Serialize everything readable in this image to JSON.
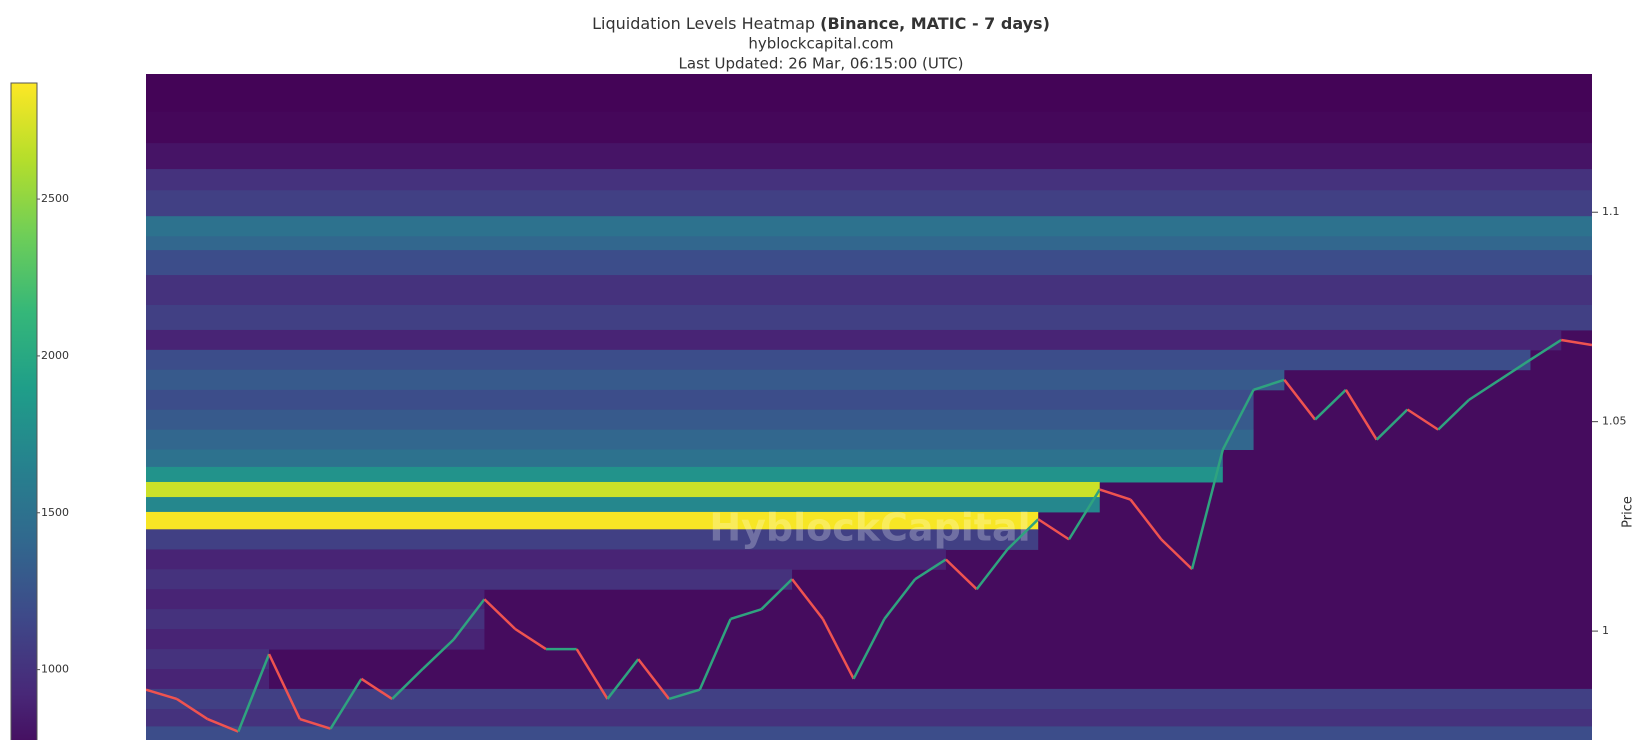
{
  "chart_data": {
    "type": "heatmap",
    "title": "Liquidation Levels Heatmap",
    "title_bold": "(Binance, MATIC - 7 days)",
    "subtitle": "hyblockcapital.com",
    "updated": "Last Updated: 26 Mar, 06:15:00 (UTC)",
    "watermark": "HyblockCapital",
    "y_label": "Price",
    "ylim": [
      0.974,
      1.133
    ],
    "yticks": [
      1,
      1.05,
      1.1
    ],
    "zlim": [
      680,
      2870
    ],
    "zticks": [
      1000,
      1500,
      2000,
      2500
    ],
    "colorscale": [
      "#440154",
      "#482878",
      "#3e4989",
      "#31688e",
      "#26828e",
      "#1f9e89",
      "#35b779",
      "#6ece58",
      "#b5de2b",
      "#fde725"
    ],
    "levels": {
      "y": [
        1.128,
        1.12,
        1.113,
        1.1076,
        1.1029,
        1.0952,
        1.0933,
        1.0886,
        1.0814,
        1.0743,
        1.0695,
        1.0648,
        1.06,
        1.0552,
        1.0505,
        1.0457,
        1.041,
        1.0374,
        1.0338,
        1.0302,
        1.0267,
        1.0219,
        1.0171,
        1.0124,
        1.0076,
        1.0029,
        0.9981,
        0.9933,
        0.9886,
        0.9838,
        0.979,
        0.9755
      ],
      "values": [
        700,
        720,
        800,
        1000,
        1100,
        1500,
        1400,
        1200,
        1000,
        1100,
        900,
        1200,
        1300,
        1200,
        1300,
        1400,
        1500,
        1800,
        2700,
        1700,
        2850,
        1100,
        900,
        1000,
        900,
        1000,
        900,
        1000,
        900,
        1100,
        1000,
        1200
      ]
    },
    "price": {
      "up_color": "#2fa37f",
      "down_color": "#ef5350",
      "values": [
        0.986,
        0.9838,
        0.979,
        0.976,
        0.9945,
        0.979,
        0.9767,
        0.9886,
        0.9838,
        0.991,
        0.998,
        1.0076,
        1.0005,
        0.9957,
        0.9957,
        0.9838,
        0.9933,
        0.9838,
        0.986,
        1.0029,
        1.0052,
        1.0124,
        1.0029,
        0.9886,
        1.0029,
        1.0124,
        1.0171,
        1.01,
        1.0195,
        1.0267,
        1.0219,
        1.0338,
        1.0314,
        1.0219,
        1.0148,
        1.0433,
        1.0576,
        1.06,
        1.0505,
        1.0576,
        1.0457,
        1.0529,
        1.0481,
        1.0552,
        1.06,
        1.0648,
        1.0695,
        1.0683
      ]
    }
  }
}
